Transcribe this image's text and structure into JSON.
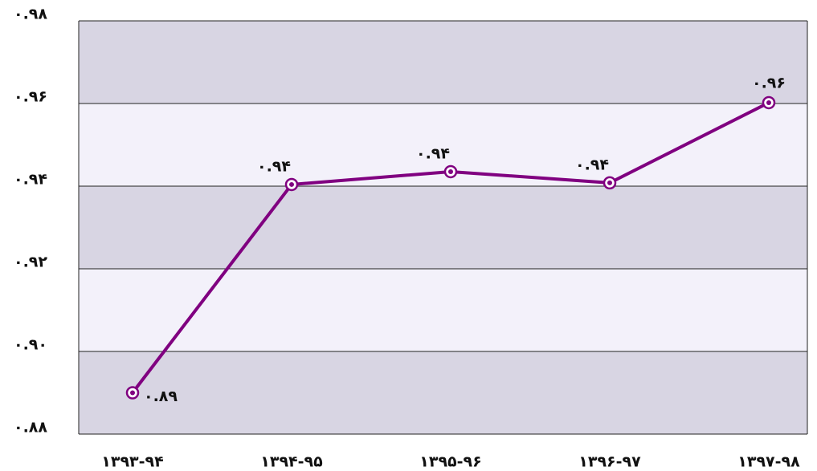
{
  "chart_data": {
    "type": "line",
    "categories": [
      "۱۳۹۳-۹۴",
      "۱۳۹۴-۹۵",
      "۱۳۹۵-۹۶",
      "۱۳۹۶-۹۷",
      "۱۳۹۷-۹۸"
    ],
    "series": [
      {
        "color": "#800080",
        "values": [
          0.89,
          0.9404,
          0.9435,
          0.9408,
          0.9602
        ],
        "value_labels": [
          "۰.۸۹",
          "۰.۹۴",
          "۰.۹۴",
          "۰.۹۴",
          "۰.۹۶"
        ]
      }
    ],
    "ylim": [
      0.88,
      0.98
    ],
    "yticks": [
      {
        "value": 0.88,
        "label": "۰.۸۸"
      },
      {
        "value": 0.9,
        "label": "۰.۹۰"
      },
      {
        "value": 0.92,
        "label": "۰.۹۲"
      },
      {
        "value": 0.94,
        "label": "۰.۹۴"
      },
      {
        "value": 0.96,
        "label": "۰.۹۶"
      },
      {
        "value": 0.98,
        "label": "۰.۹۸"
      }
    ],
    "grid": true,
    "band_colors": [
      "#d8d5e3",
      "#f3f1fa"
    ]
  }
}
